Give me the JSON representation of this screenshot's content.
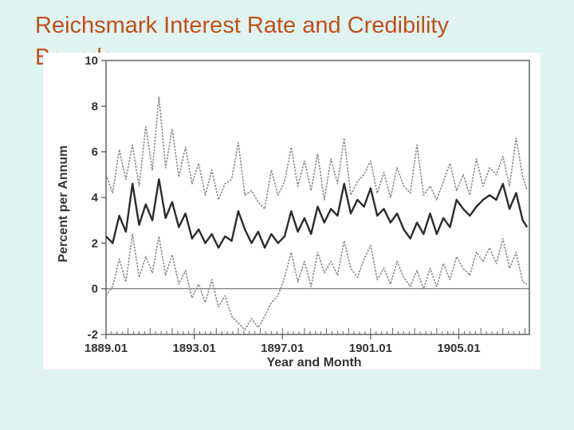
{
  "slide": {
    "title": "Reichsmark Interest Rate and Credibility Bounds"
  },
  "colors": {
    "background": "#dff3f0",
    "title": "#c0501a",
    "rate_line": "#2b2b2b",
    "bound_lines": "#8a8a8a"
  },
  "chart_data": {
    "type": "line",
    "title": "",
    "xlabel": "Year and Month",
    "ylabel": "Percent per Annum",
    "xlim": [
      1889.0,
      1908.2
    ],
    "ylim": [
      -2,
      10
    ],
    "yticks": [
      -2,
      0,
      2,
      4,
      6,
      8,
      10
    ],
    "xticks": [
      {
        "value": 1889.0,
        "label": "1889.01"
      },
      {
        "value": 1893.0,
        "label": "1893.01"
      },
      {
        "value": 1897.0,
        "label": "1897.01"
      },
      {
        "value": 1901.0,
        "label": "1901.01"
      },
      {
        "value": 1905.0,
        "label": "1905.01"
      }
    ],
    "grid": false,
    "legend": "none",
    "series": [
      {
        "style": "dashed",
        "x": [
          1889.0,
          1889.3,
          1889.6,
          1889.9,
          1890.2,
          1890.5,
          1890.8,
          1891.1,
          1891.4,
          1891.7,
          1892.0,
          1892.3,
          1892.6,
          1892.9,
          1893.2,
          1893.5,
          1893.8,
          1894.1,
          1894.4,
          1894.7,
          1895.0,
          1895.3,
          1895.6,
          1895.9,
          1896.2,
          1896.5,
          1896.8,
          1897.1,
          1897.4,
          1897.7,
          1898.0,
          1898.3,
          1898.6,
          1898.9,
          1899.2,
          1899.5,
          1899.8,
          1900.1,
          1900.4,
          1900.7,
          1901.0,
          1901.3,
          1901.6,
          1901.9,
          1902.2,
          1902.5,
          1902.8,
          1903.1,
          1903.4,
          1903.7,
          1904.0,
          1904.3,
          1904.6,
          1904.9,
          1905.2,
          1905.5,
          1905.8,
          1906.1,
          1906.4,
          1906.7,
          1907.0,
          1907.3,
          1907.6,
          1907.9,
          1908.1
        ],
        "y": [
          5.0,
          4.2,
          6.1,
          4.8,
          6.3,
          4.5,
          7.1,
          5.2,
          8.4,
          5.3,
          7.0,
          4.9,
          6.2,
          4.6,
          5.5,
          4.1,
          5.2,
          3.9,
          4.6,
          4.8,
          6.4,
          4.1,
          4.3,
          3.8,
          3.5,
          5.2,
          4.1,
          4.7,
          6.2,
          4.5,
          5.6,
          4.3,
          5.9,
          3.9,
          5.7,
          4.6,
          6.6,
          4.1,
          4.7,
          5.0,
          5.6,
          4.2,
          5.1,
          4.0,
          5.3,
          4.5,
          4.2,
          6.3,
          4.1,
          4.5,
          3.9,
          4.7,
          5.5,
          4.3,
          5.0,
          4.1,
          5.7,
          4.5,
          5.3,
          5.0,
          5.8,
          4.5,
          6.6,
          4.9,
          4.3
        ]
      },
      {
        "style": "solid",
        "x": [
          1889.0,
          1889.3,
          1889.6,
          1889.9,
          1890.2,
          1890.5,
          1890.8,
          1891.1,
          1891.4,
          1891.7,
          1892.0,
          1892.3,
          1892.6,
          1892.9,
          1893.2,
          1893.5,
          1893.8,
          1894.1,
          1894.4,
          1894.7,
          1895.0,
          1895.3,
          1895.6,
          1895.9,
          1896.2,
          1896.5,
          1896.8,
          1897.1,
          1897.4,
          1897.7,
          1898.0,
          1898.3,
          1898.6,
          1898.9,
          1899.2,
          1899.5,
          1899.8,
          1900.1,
          1900.4,
          1900.7,
          1901.0,
          1901.3,
          1901.6,
          1901.9,
          1902.2,
          1902.5,
          1902.8,
          1903.1,
          1903.4,
          1903.7,
          1904.0,
          1904.3,
          1904.6,
          1904.9,
          1905.2,
          1905.5,
          1905.8,
          1906.1,
          1906.4,
          1906.7,
          1907.0,
          1907.3,
          1907.6,
          1907.9,
          1908.1
        ],
        "y": [
          2.3,
          2.0,
          3.2,
          2.5,
          4.6,
          2.8,
          3.7,
          3.0,
          4.8,
          3.1,
          3.8,
          2.7,
          3.3,
          2.2,
          2.6,
          2.0,
          2.4,
          1.8,
          2.3,
          2.1,
          3.4,
          2.6,
          2.0,
          2.5,
          1.8,
          2.4,
          2.0,
          2.3,
          3.4,
          2.5,
          3.1,
          2.4,
          3.6,
          2.9,
          3.5,
          3.2,
          4.6,
          3.3,
          3.9,
          3.6,
          4.4,
          3.2,
          3.5,
          2.9,
          3.3,
          2.6,
          2.2,
          2.9,
          2.4,
          3.3,
          2.4,
          3.1,
          2.7,
          3.9,
          3.5,
          3.2,
          3.6,
          3.9,
          4.1,
          3.9,
          4.6,
          3.5,
          4.2,
          3.0,
          2.7
        ]
      },
      {
        "style": "dashed",
        "x": [
          1889.0,
          1889.3,
          1889.6,
          1889.9,
          1890.2,
          1890.5,
          1890.8,
          1891.1,
          1891.4,
          1891.7,
          1892.0,
          1892.3,
          1892.6,
          1892.9,
          1893.2,
          1893.5,
          1893.8,
          1894.1,
          1894.4,
          1894.7,
          1895.0,
          1895.3,
          1895.6,
          1895.9,
          1896.2,
          1896.5,
          1896.8,
          1897.1,
          1897.4,
          1897.7,
          1898.0,
          1898.3,
          1898.6,
          1898.9,
          1899.2,
          1899.5,
          1899.8,
          1900.1,
          1900.4,
          1900.7,
          1901.0,
          1901.3,
          1901.6,
          1901.9,
          1902.2,
          1902.5,
          1902.8,
          1903.1,
          1903.4,
          1903.7,
          1904.0,
          1904.3,
          1904.6,
          1904.9,
          1905.2,
          1905.5,
          1905.8,
          1906.1,
          1906.4,
          1906.7,
          1907.0,
          1907.3,
          1907.6,
          1907.9,
          1908.1
        ],
        "y": [
          -0.3,
          0.1,
          1.3,
          0.3,
          2.4,
          0.5,
          1.4,
          0.7,
          2.3,
          0.6,
          1.5,
          0.2,
          0.8,
          -0.4,
          0.2,
          -0.6,
          0.4,
          -0.8,
          -0.3,
          -1.2,
          -1.5,
          -1.8,
          -1.3,
          -1.7,
          -1.2,
          -0.6,
          -0.3,
          0.5,
          1.6,
          0.3,
          1.2,
          0.1,
          1.6,
          0.7,
          1.2,
          0.6,
          2.1,
          0.9,
          0.5,
          1.3,
          1.9,
          0.4,
          0.9,
          0.2,
          1.2,
          0.5,
          0.1,
          0.8,
          0.0,
          0.9,
          0.1,
          1.1,
          0.4,
          1.4,
          0.9,
          0.6,
          1.6,
          1.2,
          1.8,
          1.1,
          2.2,
          0.9,
          1.6,
          0.3,
          0.2
        ]
      }
    ]
  }
}
